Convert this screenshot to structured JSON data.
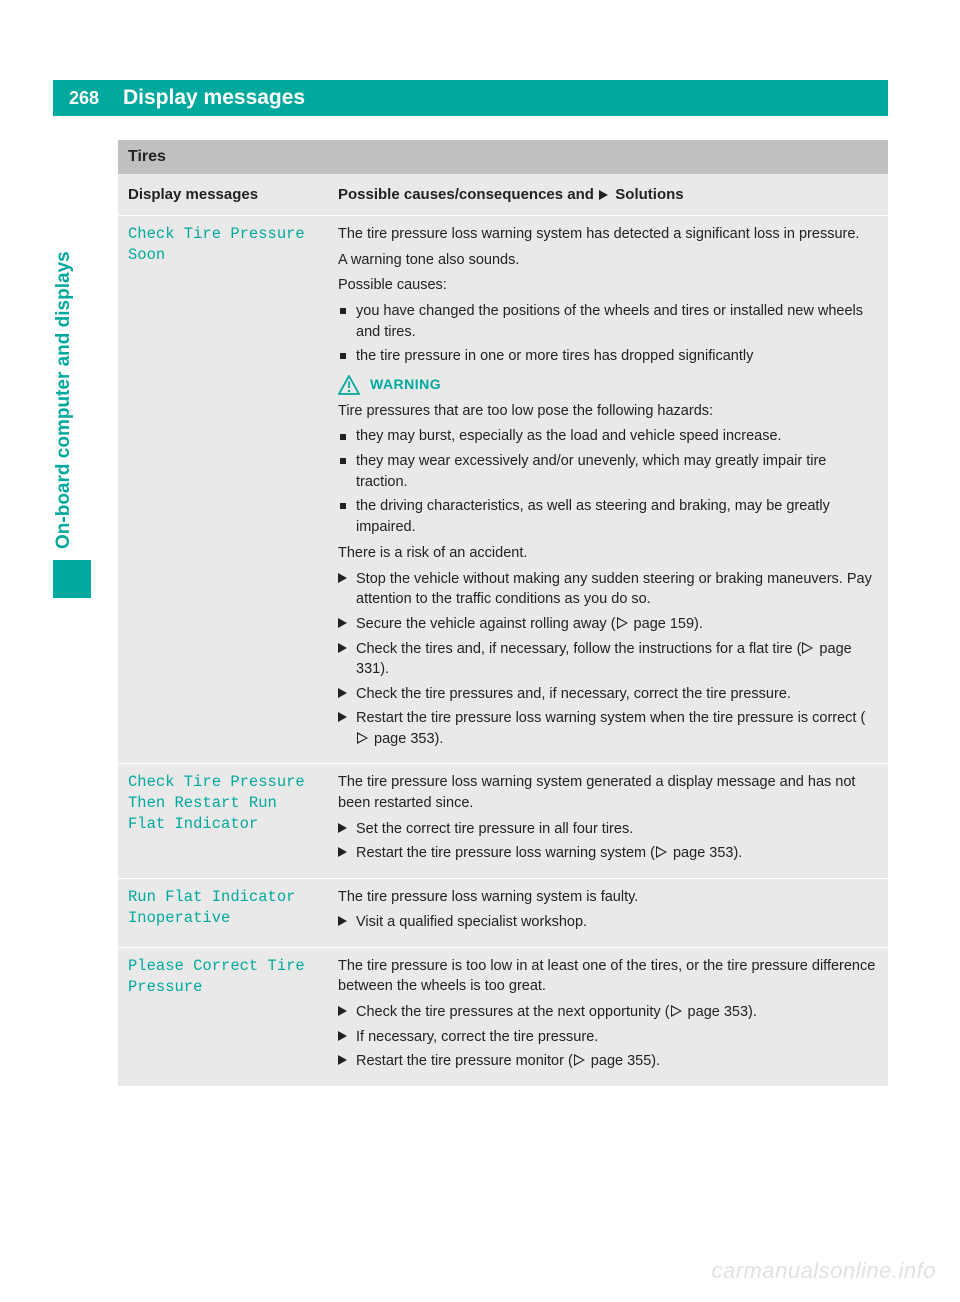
{
  "colors": {
    "brand": "#00a99d",
    "header_bg": "#00a99d",
    "section_bg": "#c0c0c0",
    "cell_bg": "#e9e9e9",
    "text": "#222222",
    "watermark": "#e2e2e2"
  },
  "page_number": "268",
  "header": "Display messages",
  "side_tab": "On-board computer and displays",
  "section_title": "Tires",
  "columns": {
    "left": "Display messages",
    "right_prefix": "Possible causes/consequences and ",
    "right_suffix": " Solutions"
  },
  "warning_label": "WARNING",
  "rows": [
    {
      "message": "Check Tire Pressure\nSoon",
      "content": {
        "intro": [
          "The tire pressure loss warning system has detected a significant loss in pressure.",
          "A warning tone also sounds.",
          "Possible causes:"
        ],
        "causes": [
          "you have changed the positions of the wheels and tires or installed new wheels and tires.",
          "the tire pressure in one or more tires has dropped significantly"
        ],
        "warning_intro": "Tire pressures that are too low pose the following hazards:",
        "warning_bullets": [
          "they may burst, especially as the load and vehicle speed increase.",
          "they may wear excessively and/or unevenly, which may greatly impair tire traction.",
          "the driving characteristics, as well as steering and braking, may be greatly impaired."
        ],
        "warning_outro": "There is a risk of an accident.",
        "steps": [
          "Stop the vehicle without making any sudden steering or braking maneuvers. Pay attention to the traffic conditions as you do so.",
          "Secure the vehicle against rolling away ( page 159).",
          "Check the tires and, if necessary, follow the instructions for a flat tire ( page 331).",
          "Check the tire pressures and, if necessary, correct the tire pressure.",
          "Restart the tire pressure loss warning system when the tire pressure is correct ( page 353)."
        ],
        "step_refs": {
          "1": "159",
          "2": "331",
          "4": "353"
        }
      }
    },
    {
      "message": "Check Tire Pressure\nThen Restart Run\nFlat Indicator",
      "content": {
        "intro": [
          "The tire pressure loss warning system generated a display message and has not been restarted since."
        ],
        "steps": [
          "Set the correct tire pressure in all four tires.",
          "Restart the tire pressure loss warning system ( page 353)."
        ],
        "step_refs": {
          "1": "353"
        }
      }
    },
    {
      "message": "Run Flat Indicator\nInoperative",
      "content": {
        "intro": [
          "The tire pressure loss warning system is faulty."
        ],
        "steps": [
          "Visit a qualified specialist workshop."
        ]
      }
    },
    {
      "message": "Please Correct Tire\nPressure",
      "content": {
        "intro": [
          "The tire pressure is too low in at least one of the tires, or the tire pressure difference between the wheels is too great."
        ],
        "steps": [
          "Check the tire pressures at the next opportunity ( page 353).",
          "If necessary, correct the tire pressure.",
          "Restart the tire pressure monitor ( page 355)."
        ],
        "step_refs": {
          "0": "353",
          "2": "355"
        }
      }
    }
  ],
  "watermark": "carmanualsonline.info"
}
